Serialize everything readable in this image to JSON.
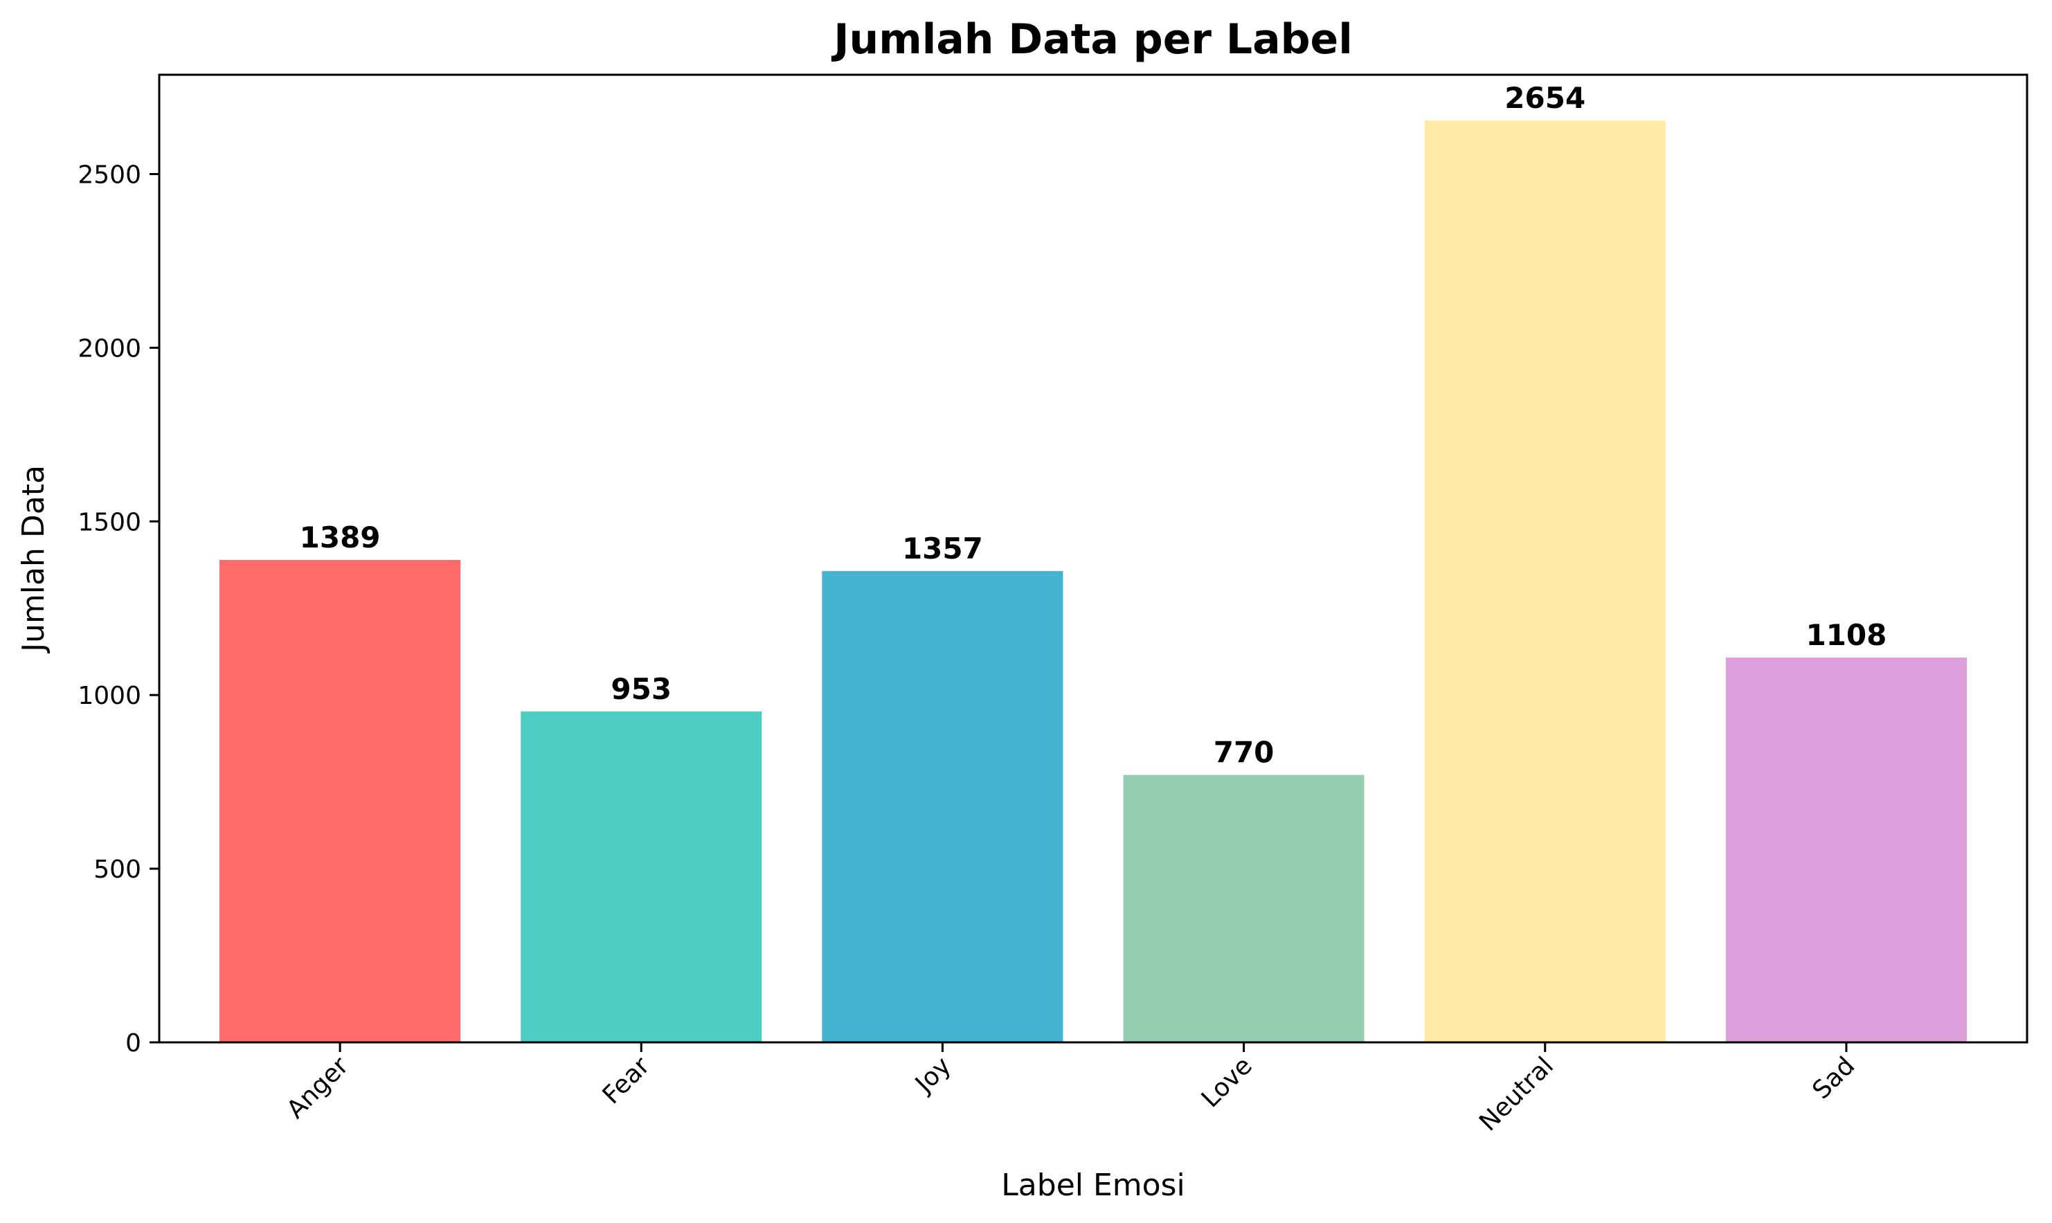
{
  "chart_data": {
    "type": "bar",
    "title": "Jumlah Data per Label",
    "xlabel": "Label Emosi",
    "ylabel": "Jumlah Data",
    "categories": [
      "Anger",
      "Fear",
      "Joy",
      "Love",
      "Neutral",
      "Sad"
    ],
    "values": [
      1389,
      953,
      1357,
      770,
      2654,
      1108
    ],
    "value_labels": [
      "1389",
      "953",
      "1357",
      "770",
      "2654",
      "1108"
    ],
    "colors": [
      "#FF6B6B",
      "#4ECDC4",
      "#45B4D1",
      "#96CEB4",
      "#FFEAA7",
      "#DDA0DD"
    ],
    "ylim": [
      0,
      2786
    ],
    "yticks": [
      0,
      500,
      1000,
      1500,
      2000,
      2500
    ],
    "ytick_labels": [
      "0",
      "500",
      "1000",
      "1500",
      "2000",
      "2500"
    ],
    "xtick_rotation": 45,
    "grid": false,
    "legend": "none"
  }
}
